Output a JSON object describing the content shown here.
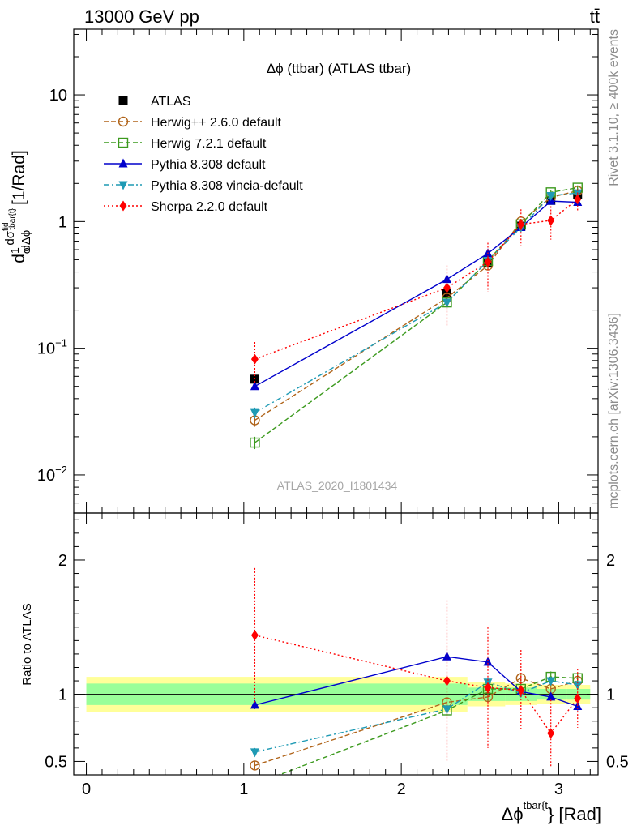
{
  "header": {
    "left": "13000 GeV pp",
    "right": "tt̄"
  },
  "side_labels": {
    "rivet": "Rivet 3.1.10, ≥ 400k events",
    "mcplots": "mcplots.cern.ch [arXiv:1306.3436]"
  },
  "chart_data": [
    {
      "type": "line",
      "panel": "main",
      "title": "Δϕ (ttbar) (ATLAS ttbar)",
      "analysis_label": "ATLAS_2020_I1801434",
      "ylabel_parts": {
        "d": "d",
        "one": "1",
        "sigma": "σ",
        "dsigma": "dσ",
        "sup": "fid",
        "sub": "tbar{t}",
        "dphi": "dΔϕ",
        "unit": "[1/Rad]"
      },
      "yscale": "log",
      "ylim": [
        0.005,
        33
      ],
      "yticks": [
        {
          "v": 0.01,
          "base": "10",
          "exp": "−2"
        },
        {
          "v": 0.1,
          "base": "10",
          "exp": "−1"
        },
        {
          "v": 1,
          "base": "1",
          "exp": ""
        },
        {
          "v": 10,
          "base": "10",
          "exp": ""
        }
      ],
      "xlim": [
        -0.08,
        3.25
      ],
      "series": [
        {
          "name": "ATLAS",
          "color": "#000000",
          "marker": "square",
          "line": "none",
          "x": [
            1.07,
            2.29,
            2.55,
            2.76,
            2.95,
            3.12
          ],
          "y": [
            0.057,
            0.27,
            0.47,
            0.92,
            1.47,
            1.63
          ],
          "err": [
            0.004,
            0.02,
            0.03,
            0.05,
            0.08,
            0.09
          ]
        },
        {
          "name": "Herwig++ 2.6.0 default",
          "color": "#b0641a",
          "marker": "circle-open",
          "line": "dashed",
          "x": [
            1.07,
            2.29,
            2.55,
            2.76,
            2.95,
            3.12
          ],
          "y": [
            0.027,
            0.25,
            0.45,
            1.0,
            1.55,
            1.75
          ],
          "err": [
            0.003,
            0.02,
            0.03,
            0.05,
            0.07,
            0.08
          ]
        },
        {
          "name": "Herwig 7.2.1 default",
          "color": "#3c9a1e",
          "marker": "square-open",
          "line": "dashed",
          "x": [
            1.07,
            2.29,
            2.55,
            2.76,
            2.95,
            3.12
          ],
          "y": [
            0.018,
            0.23,
            0.49,
            0.95,
            1.7,
            1.85
          ],
          "err": [
            0.002,
            0.02,
            0.03,
            0.05,
            0.07,
            0.08
          ]
        },
        {
          "name": "Pythia 8.308 default",
          "color": "#0000cc",
          "marker": "triangle-up",
          "line": "solid",
          "x": [
            1.07,
            2.29,
            2.55,
            2.76,
            2.95,
            3.12
          ],
          "y": [
            0.05,
            0.35,
            0.56,
            0.9,
            1.45,
            1.42
          ],
          "err": [
            0.003,
            0.03,
            0.04,
            0.05,
            0.07,
            0.08
          ]
        },
        {
          "name": "Pythia 8.308 vincia-default",
          "color": "#1e9ab4",
          "marker": "triangle-down",
          "line": "dashdot",
          "x": [
            1.07,
            2.29,
            2.55,
            2.76,
            2.95,
            3.12
          ],
          "y": [
            0.031,
            0.23,
            0.49,
            0.9,
            1.6,
            1.68
          ],
          "err": [
            0.003,
            0.02,
            0.03,
            0.05,
            0.07,
            0.08
          ]
        },
        {
          "name": "Sherpa 2.2.0 default",
          "color": "#ff0000",
          "marker": "diamond",
          "line": "dotted",
          "x": [
            1.07,
            2.29,
            2.55,
            2.76,
            2.95,
            3.12
          ],
          "y": [
            0.082,
            0.3,
            0.48,
            0.95,
            1.02,
            1.5
          ],
          "err": [
            0.03,
            0.15,
            0.2,
            0.3,
            0.3,
            0.3
          ]
        }
      ]
    },
    {
      "type": "line",
      "panel": "ratio",
      "ylabel": "Ratio to ATLAS",
      "xlabel_parts": {
        "main": "Δϕ",
        "sup": "tbar{t",
        "tail": "} [Rad]"
      },
      "ylim": [
        0.4,
        2.35
      ],
      "yticks": [
        0.5,
        1,
        2
      ],
      "ytick_labels": [
        "0.5",
        "1",
        "2"
      ],
      "xlim": [
        -0.08,
        3.25
      ],
      "xticks": [
        0,
        1,
        2,
        3
      ],
      "xtick_labels": [
        "0",
        "1",
        "2",
        "3"
      ],
      "reference_line": 1,
      "bands": {
        "outer_color": "#ffff99",
        "inner_color": "#99ff99",
        "bins": [
          {
            "x0": 0.0,
            "x1": 2.42,
            "outer": [
              0.87,
              1.13
            ],
            "inner": [
              0.92,
              1.08
            ]
          },
          {
            "x0": 2.42,
            "x1": 2.66,
            "outer": [
              0.91,
              1.09
            ],
            "inner": [
              0.95,
              1.05
            ]
          },
          {
            "x0": 2.66,
            "x1": 2.86,
            "outer": [
              0.92,
              1.08
            ],
            "inner": [
              0.95,
              1.05
            ]
          },
          {
            "x0": 2.86,
            "x1": 3.05,
            "outer": [
              0.93,
              1.07
            ],
            "inner": [
              0.96,
              1.04
            ]
          },
          {
            "x0": 3.05,
            "x1": 3.2,
            "outer": [
              0.93,
              1.07
            ],
            "inner": [
              0.96,
              1.04
            ]
          }
        ]
      },
      "series": [
        {
          "name": "Herwig++ 2.6.0 default",
          "color": "#b0641a",
          "marker": "circle-open",
          "line": "dashed",
          "x": [
            1.07,
            2.29,
            2.55,
            2.76,
            2.95,
            3.12
          ],
          "y": [
            0.47,
            0.94,
            0.98,
            1.12,
            1.04,
            1.1
          ],
          "err": [
            0.03,
            0.04,
            0.04,
            0.04,
            0.04,
            0.04
          ]
        },
        {
          "name": "Herwig 7.2.1 default",
          "color": "#3c9a1e",
          "marker": "square-open",
          "line": "dashed",
          "x": [
            1.07,
            2.29,
            2.55,
            2.76,
            2.95,
            3.12
          ],
          "y": [
            0.33,
            0.88,
            1.04,
            1.04,
            1.13,
            1.12
          ],
          "err": [
            0.03,
            0.04,
            0.04,
            0.04,
            0.04,
            0.04
          ]
        },
        {
          "name": "Pythia 8.308 default",
          "color": "#0000cc",
          "marker": "triangle-up",
          "line": "solid",
          "x": [
            1.07,
            2.29,
            2.55,
            2.76,
            2.95,
            3.12
          ],
          "y": [
            0.92,
            1.28,
            1.24,
            1.02,
            0.98,
            0.91
          ],
          "err": [
            0.03,
            0.03,
            0.03,
            0.03,
            0.03,
            0.03
          ]
        },
        {
          "name": "Pythia 8.308 vincia-default",
          "color": "#1e9ab4",
          "marker": "triangle-down",
          "line": "dashdot",
          "x": [
            1.07,
            2.29,
            2.55,
            2.76,
            2.95,
            3.12
          ],
          "y": [
            0.57,
            0.89,
            1.09,
            1.01,
            1.1,
            1.07
          ],
          "err": [
            0.03,
            0.03,
            0.03,
            0.03,
            0.03,
            0.03
          ]
        },
        {
          "name": "Sherpa 2.2.0 default",
          "color": "#ff0000",
          "marker": "diamond",
          "line": "dotted",
          "x": [
            1.07,
            2.29,
            2.55,
            2.76,
            2.95,
            3.12
          ],
          "y": [
            1.44,
            1.1,
            1.05,
            1.03,
            0.71,
            0.97
          ],
          "err": [
            0.5,
            0.6,
            0.45,
            0.3,
            0.25,
            0.22
          ]
        }
      ]
    }
  ]
}
